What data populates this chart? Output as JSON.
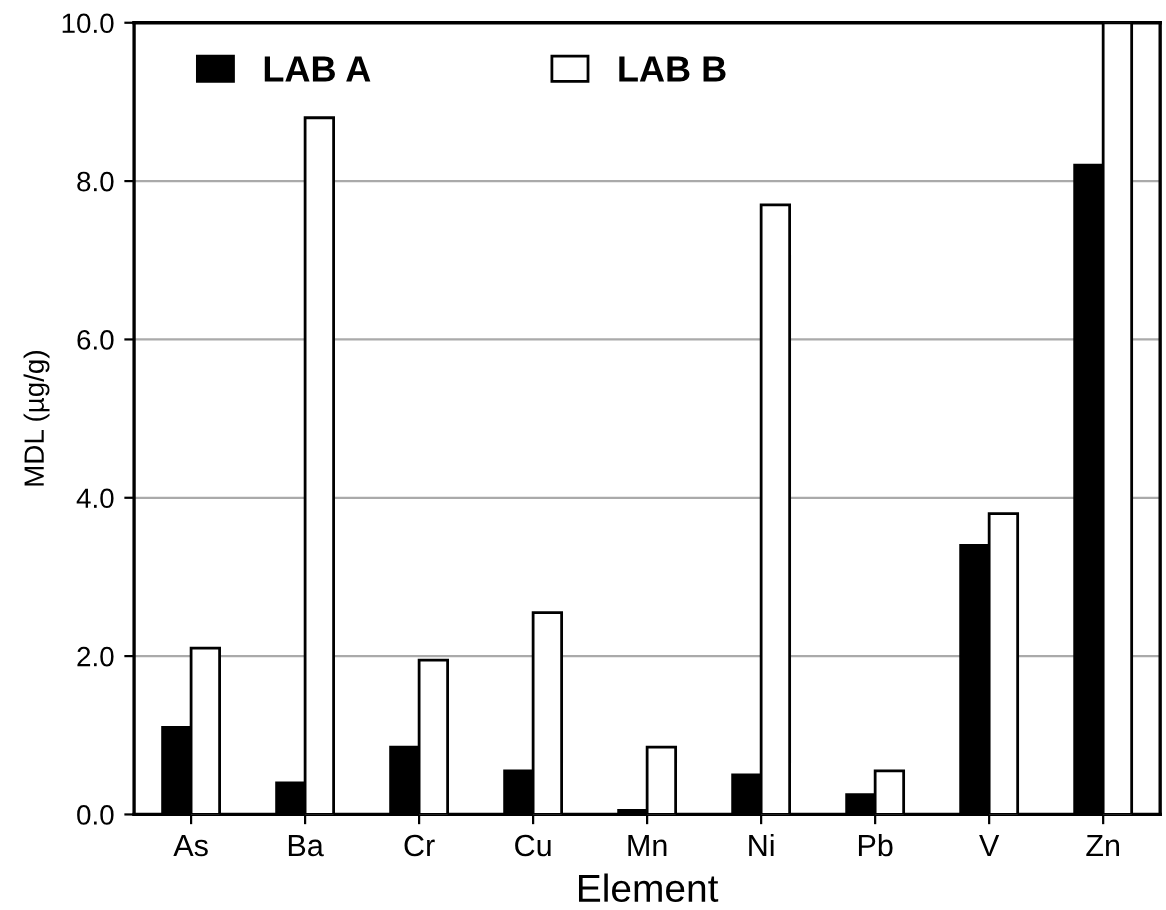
{
  "chart_data": {
    "type": "bar",
    "xlabel": "Element",
    "ylabel": "MDL (µg/g)",
    "categories": [
      "As",
      "Ba",
      "Cr",
      "Cu",
      "Mn",
      "Ni",
      "Pb",
      "V",
      "Zn"
    ],
    "series": [
      {
        "name": "LAB A",
        "color": "#000000",
        "values": [
          1.1,
          0.4,
          0.85,
          0.55,
          0.05,
          0.5,
          0.25,
          3.4,
          8.2
        ]
      },
      {
        "name": "LAB B",
        "color": "#ffffff",
        "values": [
          2.1,
          8.8,
          1.95,
          2.55,
          0.85,
          7.7,
          0.55,
          3.8,
          10.0
        ]
      }
    ],
    "ylim": [
      0,
      10
    ],
    "yticks": [
      {
        "value": 0,
        "label": "0.0"
      },
      {
        "value": 2,
        "label": "2.0"
      },
      {
        "value": 4,
        "label": "4.0"
      },
      {
        "value": 6,
        "label": "6.0"
      },
      {
        "value": 8,
        "label": "8.0"
      },
      {
        "value": 10,
        "label": "10.0"
      }
    ],
    "grid": "y",
    "legend": "top"
  }
}
